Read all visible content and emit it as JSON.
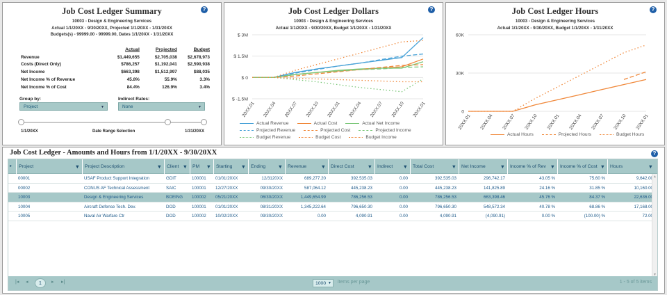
{
  "summary": {
    "title": "Job Cost Ledger Summary",
    "sub1": "10003 - Design & Engineering Services",
    "sub2": "Actual 1/1/20XX - 9/30/20XX, Projected 1/1/20XX - 1/31/20XX",
    "sub3": "Budgets(s) - 99999.00 - 99999.00, Dates 1/1/20XX - 1/31/20XX",
    "headers": [
      "Actual",
      "Projected",
      "Budget"
    ],
    "rows": [
      {
        "label": "Revenue",
        "actual": "$1,449,655",
        "projected": "$2,705,038",
        "budget": "$2,678,973"
      },
      {
        "label": "Costs (Direct Only)",
        "actual": "$786,257",
        "projected": "$1,192,041",
        "budget": "$2,590,938"
      },
      {
        "label": "Net Income",
        "actual": "$663,398",
        "projected": "$1,512,997",
        "budget": "$88,035"
      },
      {
        "label": "Net Income % of Revenue",
        "actual": "45.8%",
        "projected": "55.9%",
        "budget": "3.3%"
      },
      {
        "label": "Net Income % of Cost",
        "actual": "84.4%",
        "projected": "126.9%",
        "budget": "3.4%"
      }
    ],
    "group_by_label": "Group by:",
    "group_by_value": "Project",
    "indirect_label": "Indirect Rates:",
    "indirect_value": "None",
    "range_start": "1/1/20XX",
    "range_label": "Date Range Selection",
    "range_end": "1/31/20XX"
  },
  "dollars": {
    "title": "Job Cost Ledger Dollars",
    "sub1": "10003 - Design & Engineering Services",
    "sub2": "Actual 1/1/20XX - 9/30/20XX, Budget 1/1/20XX - 1/31/20XX"
  },
  "hours": {
    "title": "Job Cost Ledger Hours",
    "sub1": "10003 - Design & Engineering Services",
    "sub2": "Actual 1/1/20XX - 9/30/20XX, Budget 1/1/20XX - 1/31/20XX"
  },
  "chart_data": [
    {
      "type": "line",
      "title": "Job Cost Ledger Dollars",
      "x": [
        "20XX.01",
        "20XX.04",
        "20XX.07",
        "20XX.10",
        "20XX.01",
        "20XX.04",
        "20XX.07",
        "20XX.10",
        "20XX.01"
      ],
      "y_ticks": [
        "$ 3M",
        "$ 1.5M",
        "$ 0",
        "$ -1.5M"
      ],
      "ylim": [
        -1.5,
        3
      ],
      "y_unit": "M",
      "series": [
        {
          "name": "Actual Revenue",
          "color": "#4aa3d8",
          "dash": "solid",
          "values": [
            0,
            0,
            0.35,
            0.6,
            0.8,
            1.0,
            1.2,
            1.4,
            2.8
          ]
        },
        {
          "name": "Actual Cost",
          "color": "#f0883a",
          "dash": "solid",
          "values": [
            0,
            0,
            0.2,
            0.35,
            0.45,
            0.55,
            0.65,
            0.75,
            1.3
          ]
        },
        {
          "name": "Actual Net Income",
          "color": "#7cc87a",
          "dash": "solid",
          "values": [
            0,
            0,
            0.2,
            0.35,
            0.5,
            0.6,
            0.65,
            0.65,
            1.1
          ]
        },
        {
          "name": "Projected Revenue",
          "color": "#4aa3d8",
          "dash": "dash",
          "values": [
            0,
            0,
            0.3,
            0.55,
            0.8,
            1.0,
            1.25,
            1.5,
            1.65
          ]
        },
        {
          "name": "Projected Cost",
          "color": "#f0883a",
          "dash": "dash",
          "values": [
            0,
            0,
            0.1,
            0.25,
            0.4,
            0.55,
            0.7,
            0.85,
            0.9
          ]
        },
        {
          "name": "Projected Income",
          "color": "#7cc87a",
          "dash": "dash",
          "values": [
            0,
            0,
            0.2,
            0.35,
            0.45,
            0.55,
            0.6,
            0.7,
            0.75
          ]
        },
        {
          "name": "Budget Revenue",
          "color": "#7cc87a",
          "dash": "dot",
          "values": [
            0,
            0,
            -0.15,
            -0.3,
            -0.5,
            -0.7,
            -0.85,
            -1.0,
            -0.1
          ]
        },
        {
          "name": "Budget Cost",
          "color": "#f0883a",
          "dash": "dot",
          "values": [
            0,
            0,
            0.5,
            0.9,
            1.3,
            1.7,
            2.1,
            2.5,
            2.6
          ]
        },
        {
          "name": "Budget Income",
          "color": "#f0883a",
          "dash": "dot",
          "values": [
            0,
            0,
            -0.05,
            -0.1,
            -0.15,
            -0.2,
            -0.25,
            -0.3,
            -0.3
          ]
        }
      ]
    },
    {
      "type": "line",
      "title": "Job Cost Ledger Hours",
      "x": [
        "20XX.01",
        "20XX.04",
        "20XX.07",
        "20XX.10",
        "20XX.01",
        "20XX.04",
        "20XX.07",
        "20XX.10",
        "20XX.01"
      ],
      "y_ticks": [
        "60K",
        "30K",
        "0"
      ],
      "ylim": [
        0,
        60000
      ],
      "series": [
        {
          "name": "Actual Hours",
          "color": "#f0883a",
          "dash": "solid",
          "values": [
            0,
            0,
            0,
            5000,
            9000,
            13000,
            17000,
            21000,
            25000
          ]
        },
        {
          "name": "Projected Hours",
          "color": "#f0883a",
          "dash": "dash",
          "values": [
            null,
            null,
            null,
            null,
            null,
            null,
            null,
            25000,
            31000
          ]
        },
        {
          "name": "Budget Hours",
          "color": "#f0883a",
          "dash": "dot",
          "values": [
            0,
            0,
            0,
            10000,
            19000,
            28000,
            37000,
            46000,
            52000
          ]
        }
      ]
    }
  ],
  "grid": {
    "title": "Job Cost Ledger - Amounts and Hours from 1/1/20XX -  9/30/20XX",
    "columns": [
      "Project",
      "Project Description",
      "Client",
      "PM",
      "Starting",
      "Ending",
      "Revenue",
      "Direct Cost",
      "Indirect",
      "Total Cost",
      "Net Income",
      "Income % of Rev",
      "Income % of Cost",
      "Hours"
    ],
    "rows": [
      [
        "00001",
        "USAF Product Support Integration",
        "GDIT",
        "100001",
        "01/01/20XX",
        "12/3120XX",
        "689,277.20",
        "392,535.03",
        "0.00",
        "392,535.03",
        "296,742.17",
        "43.05 %",
        "75.60 %",
        "9,642.00"
      ],
      [
        "00002",
        "CONUS AF Technical Assessment",
        "SAIC",
        "100001",
        "12/27/20XX",
        "09/30/20XX",
        "587,064.12",
        "445,238.23",
        "0.00",
        "445,238.23",
        "141,825.89",
        "24.16 %",
        "31.85 %",
        "10,160.00"
      ],
      [
        "10003",
        "Design & Engineering Services",
        "BOEING",
        "100002",
        "05/21/20XX",
        "06/30/20XX",
        "1,449,654.99",
        "786,256.53",
        "0.00",
        "786,256.53",
        "663,398.46",
        "45.76 %",
        "84.37 %",
        "22,636.00"
      ],
      [
        "10004",
        "Aircraft Defense Tech. Dev.",
        "DOD",
        "100001",
        "01/01/20XX",
        "08/31/20XX",
        "1,345,222.64",
        "796,650.30",
        "0.00",
        "796,650.30",
        "548,572.34",
        "40.78 %",
        "68.86 %",
        "17,168.00"
      ],
      [
        "10005",
        "Naval Air Warfare Ctr",
        "DOD",
        "100002",
        "10/02/20XX",
        "09/30/20XX",
        "0.00",
        "4,090.91",
        "0.00",
        "4,090.91",
        "(4,090.91)",
        "0.00 %",
        "(100.00) %",
        "72.00"
      ]
    ],
    "selected_row": 2,
    "page": "1",
    "items_per_page": "1000",
    "items_per_page_label": "items per page",
    "count": "1 - 5 of 5 items"
  }
}
